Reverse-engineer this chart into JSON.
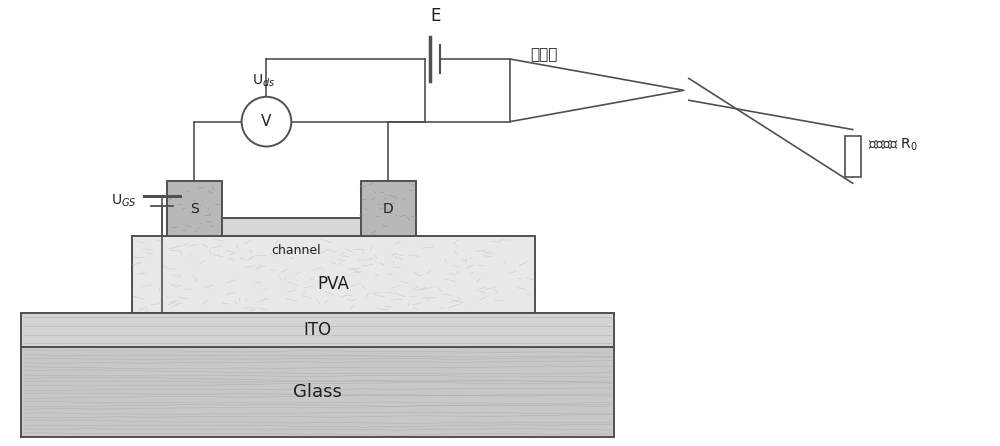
{
  "bg_color": "#ffffff",
  "line_color": "#505050",
  "text_color": "#202020",
  "glass_face": "#c8c8c8",
  "ito_face": "#d4d4d4",
  "pva_face": "#e8e8e8",
  "electrode_face": "#b8b8b8",
  "channel_face": "#d8d8d8",
  "labels": {
    "E": "E",
    "Uds": "U$_{ds}$",
    "V": "V",
    "S": "S",
    "D": "D",
    "channel": "channel",
    "PVA": "PVA",
    "ITO": "ITO",
    "Glass": "Glass",
    "UGS": "U$_{GS}$",
    "electrode_pen": "电极笔",
    "resistor_label": "被测电阻 R$_0$"
  },
  "figsize": [
    10.0,
    4.46
  ],
  "dpi": 100
}
